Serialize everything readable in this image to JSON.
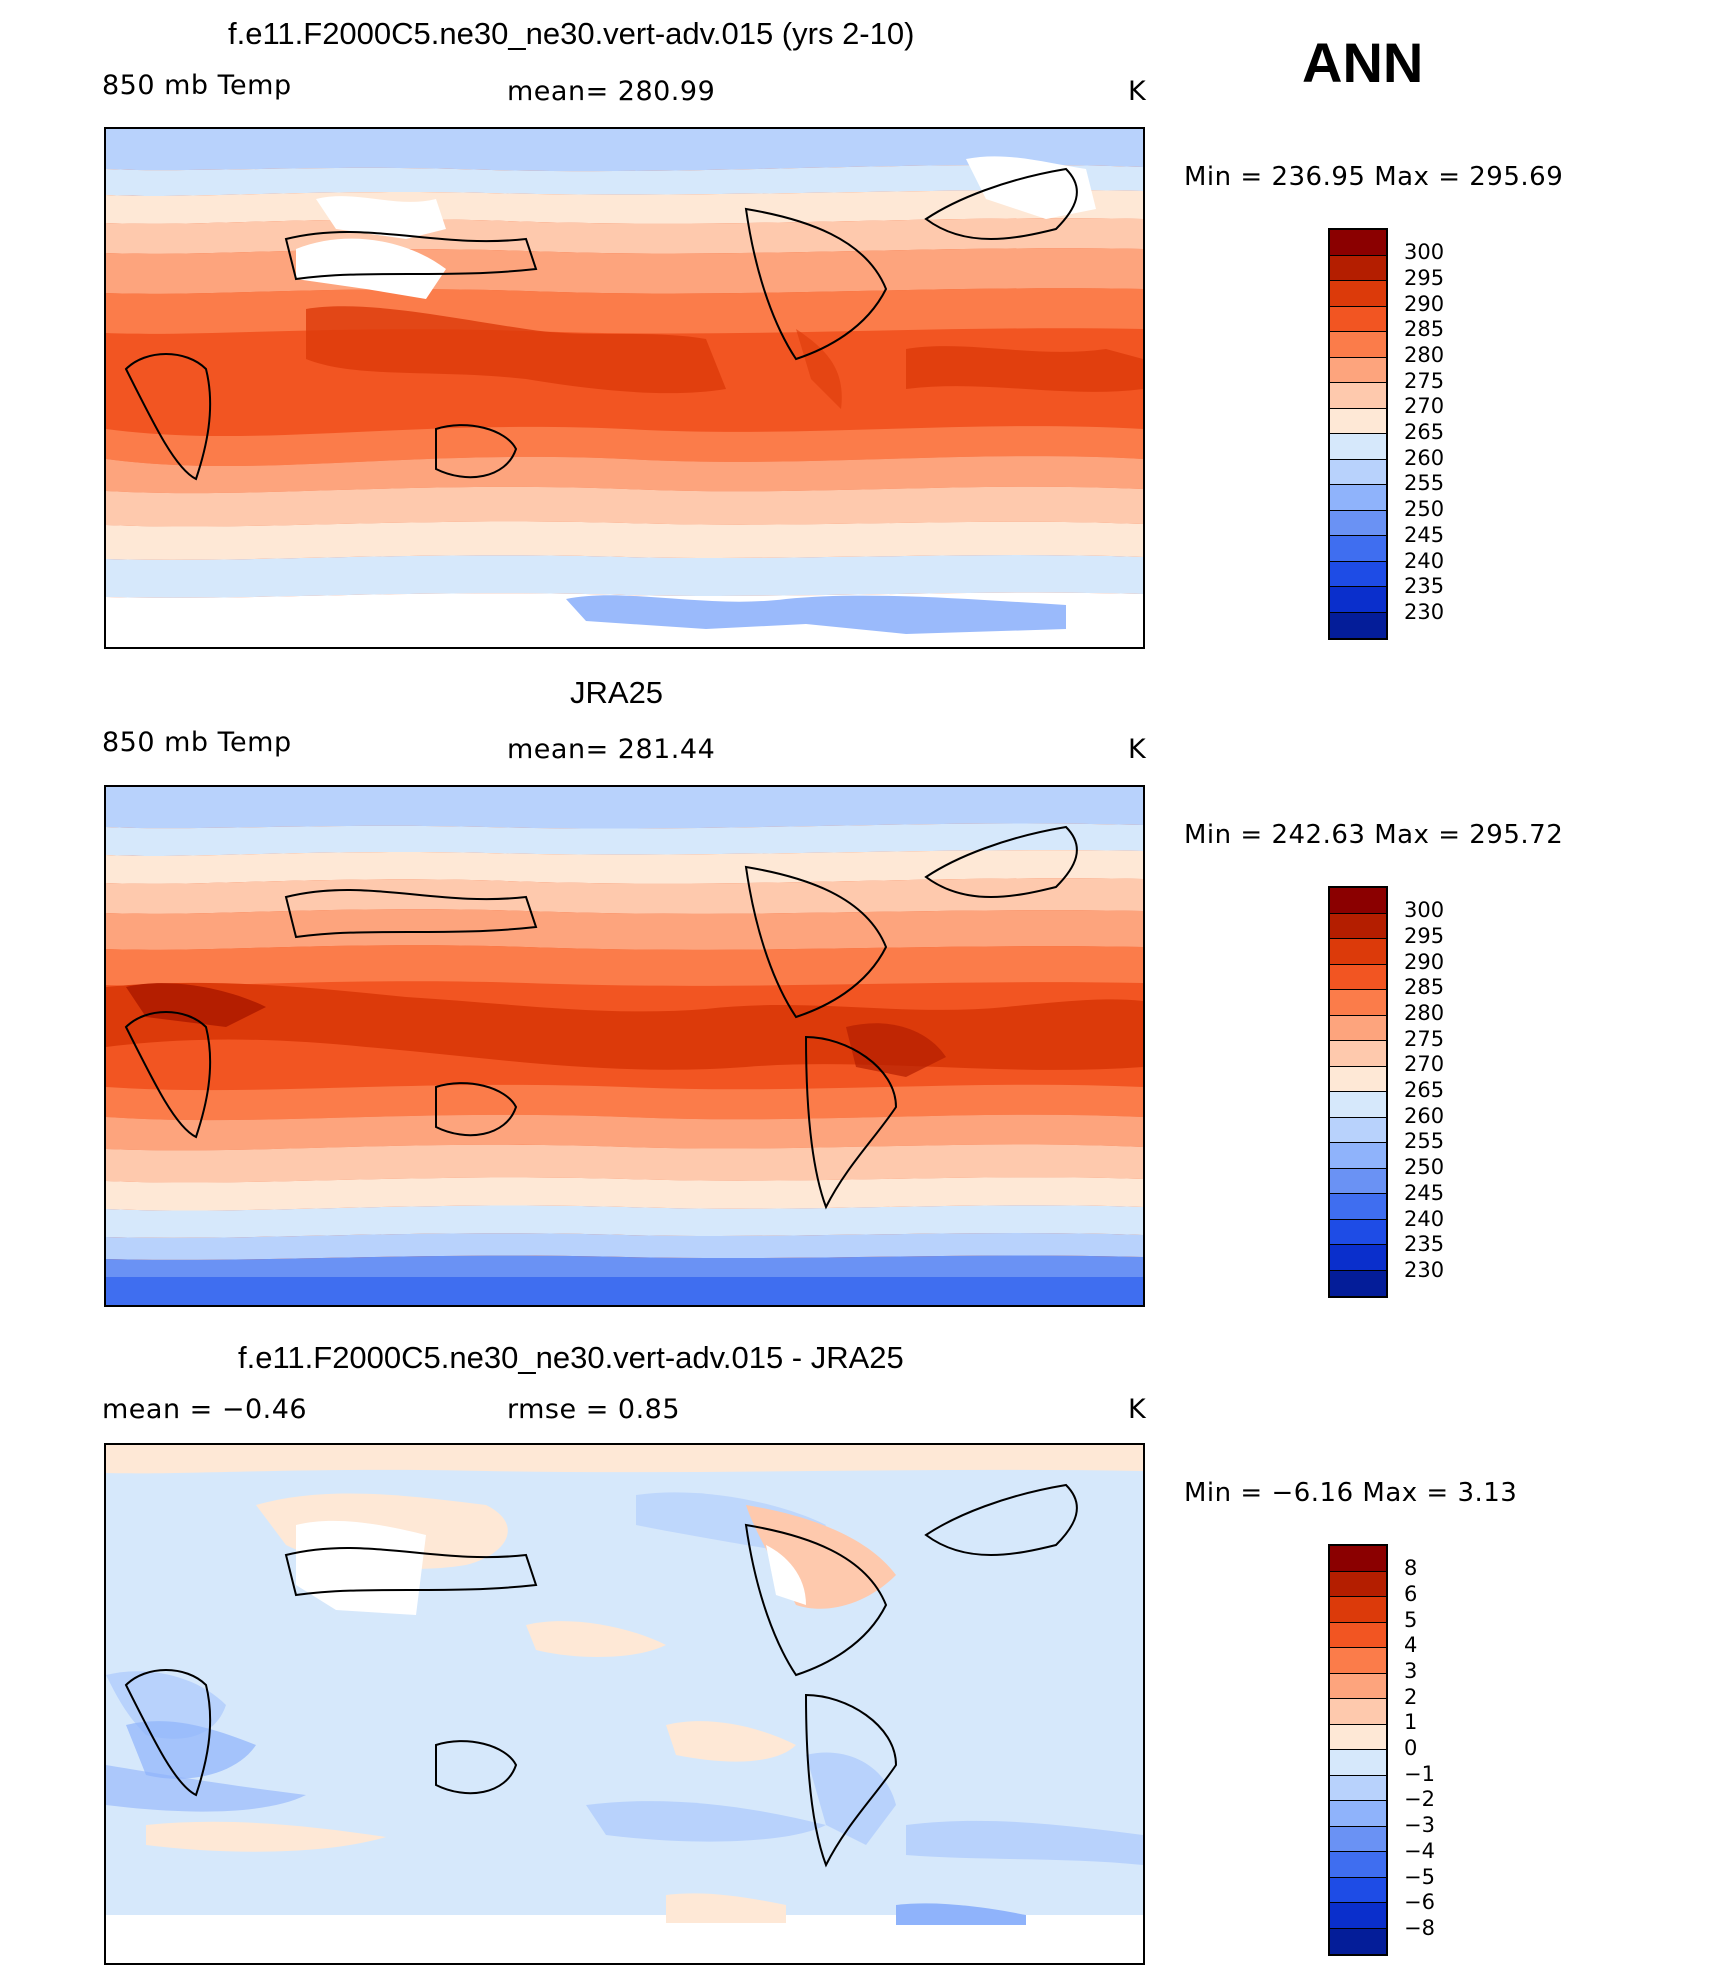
{
  "season": "ANN",
  "colors": {
    "temp": [
      "#8b0000",
      "#b41e00",
      "#dc3a0a",
      "#f25522",
      "#fb7c4a",
      "#fda47d",
      "#fec9ad",
      "#fee8d6",
      "#d6e8fb",
      "#b8d2fc",
      "#8fb3fb",
      "#6a92f4",
      "#3f6ef0",
      "#1e4ce6",
      "#0a2fcc",
      "#041d99"
    ],
    "diff": [
      "#8b0000",
      "#b41e00",
      "#dc3a0a",
      "#f25522",
      "#fb7c4a",
      "#fda47d",
      "#fec9ad",
      "#fee8d6",
      "#d6e8fb",
      "#b8d2fc",
      "#8fb3fb",
      "#6a92f4",
      "#3f6ef0",
      "#1e4ce6",
      "#0a2fcc",
      "#041d99"
    ]
  },
  "panels": [
    {
      "title": "f.e11.F2000C5.ne30_ne30.vert-adv.015 (yrs 2-10)",
      "left_label": "850 mb Temp",
      "center_label": "mean=  280.99",
      "units": "K",
      "minmax": "Min  =  236.95  Max  =  295.69",
      "ticks": [
        "300",
        "295",
        "290",
        "285",
        "280",
        "275",
        "270",
        "265",
        "260",
        "255",
        "250",
        "245",
        "240",
        "235",
        "230"
      ]
    },
    {
      "title": "JRA25",
      "left_label": "850 mb Temp",
      "center_label": "mean=  281.44",
      "units": "K",
      "minmax": "Min  =  242.63  Max  =  295.72",
      "ticks": [
        "300",
        "295",
        "290",
        "285",
        "280",
        "275",
        "270",
        "265",
        "260",
        "255",
        "250",
        "245",
        "240",
        "235",
        "230"
      ]
    },
    {
      "title": "f.e11.F2000C5.ne30_ne30.vert-adv.015 - JRA25",
      "left_label": "mean  =    −0.46",
      "center_label": "rmse  =     0.85",
      "units": "K",
      "minmax": "Min  =    −6.16  Max  =     3.13",
      "ticks": [
        "8",
        "6",
        "5",
        "4",
        "3",
        "2",
        "1",
        "0",
        "−1",
        "−2",
        "−3",
        "−4",
        "−5",
        "−6",
        "−8"
      ]
    }
  ]
}
